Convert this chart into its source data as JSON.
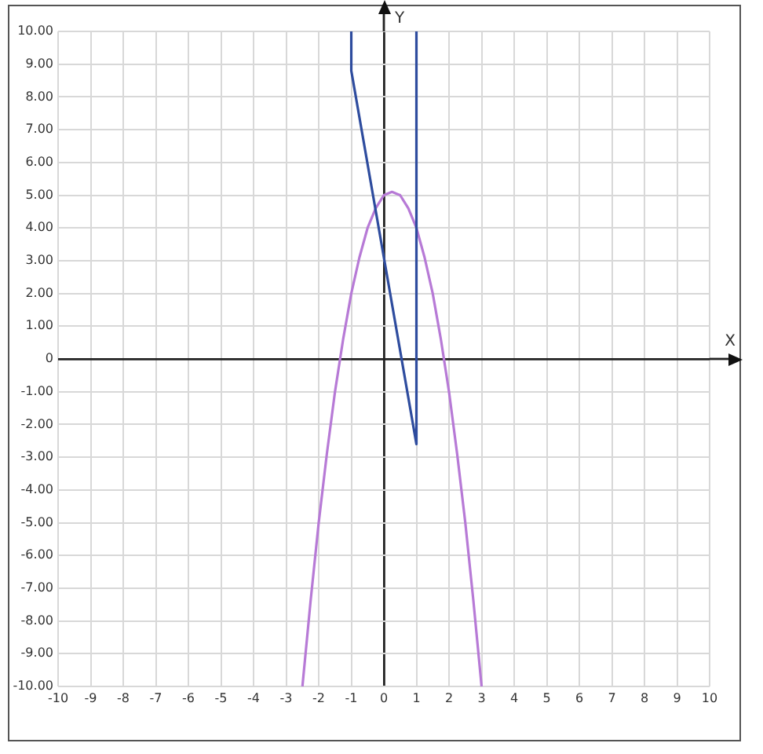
{
  "chart_data": {
    "type": "line",
    "xlabel": "X",
    "ylabel": "Y",
    "xlim": [
      -10,
      10
    ],
    "xticks": [
      -10,
      -9,
      -8,
      -7,
      -6,
      -5,
      -4,
      -3,
      -2,
      -1,
      0,
      1,
      2,
      3,
      4,
      5,
      6,
      7,
      8,
      9,
      10
    ],
    "ylim": [
      -10,
      10
    ],
    "yticks": [
      {
        "value": -10,
        "label": "-10.00"
      },
      {
        "value": -9,
        "label": "-9.00"
      },
      {
        "value": -8,
        "label": "-8.00"
      },
      {
        "value": -7,
        "label": "-7.00"
      },
      {
        "value": -6,
        "label": "-6.00"
      },
      {
        "value": -5,
        "label": "-5.00"
      },
      {
        "value": -4,
        "label": "-4.00"
      },
      {
        "value": -3,
        "label": "-3.00"
      },
      {
        "value": -2,
        "label": "-2.00"
      },
      {
        "value": -1,
        "label": "-1.00"
      },
      0,
      {
        "value": 1,
        "label": "1.00"
      },
      {
        "value": 2,
        "label": "2.00"
      },
      {
        "value": 3,
        "label": "3.00"
      },
      {
        "value": 4,
        "label": "4.00"
      },
      {
        "value": 5,
        "label": "5.00"
      },
      {
        "value": 6,
        "label": "6.00"
      },
      {
        "value": 7,
        "label": "7.00"
      },
      {
        "value": 8,
        "label": "8.00"
      },
      {
        "value": 9,
        "label": "9.00"
      },
      {
        "value": 10,
        "label": "10.00"
      }
    ],
    "grid": true,
    "marker": "none",
    "line_style": "solid",
    "series": [
      {
        "color": "#2e4c9e",
        "x": [
          -1,
          -1,
          1,
          1
        ],
        "values": [
          10,
          8.8,
          -2.6,
          10
        ]
      },
      {
        "color": "#b77ad6",
        "x": [
          -2.5,
          -2.25,
          -2,
          -1.75,
          -1.5,
          -1.25,
          -1,
          -0.75,
          -0.5,
          -0.25,
          0,
          0.25,
          0.5,
          0.75,
          1,
          1.25,
          1.5,
          1.75,
          2,
          2.25,
          2.5,
          2.75,
          3
        ],
        "values": [
          -10,
          -7.4,
          -5.0,
          -2.9,
          -1.0,
          0.6,
          2.0,
          3.1,
          4.0,
          4.6,
          5.0,
          5.1,
          5.0,
          4.6,
          4.0,
          3.1,
          2.0,
          0.6,
          -1.0,
          -2.9,
          -5.0,
          -7.4,
          -10
        ]
      }
    ]
  }
}
